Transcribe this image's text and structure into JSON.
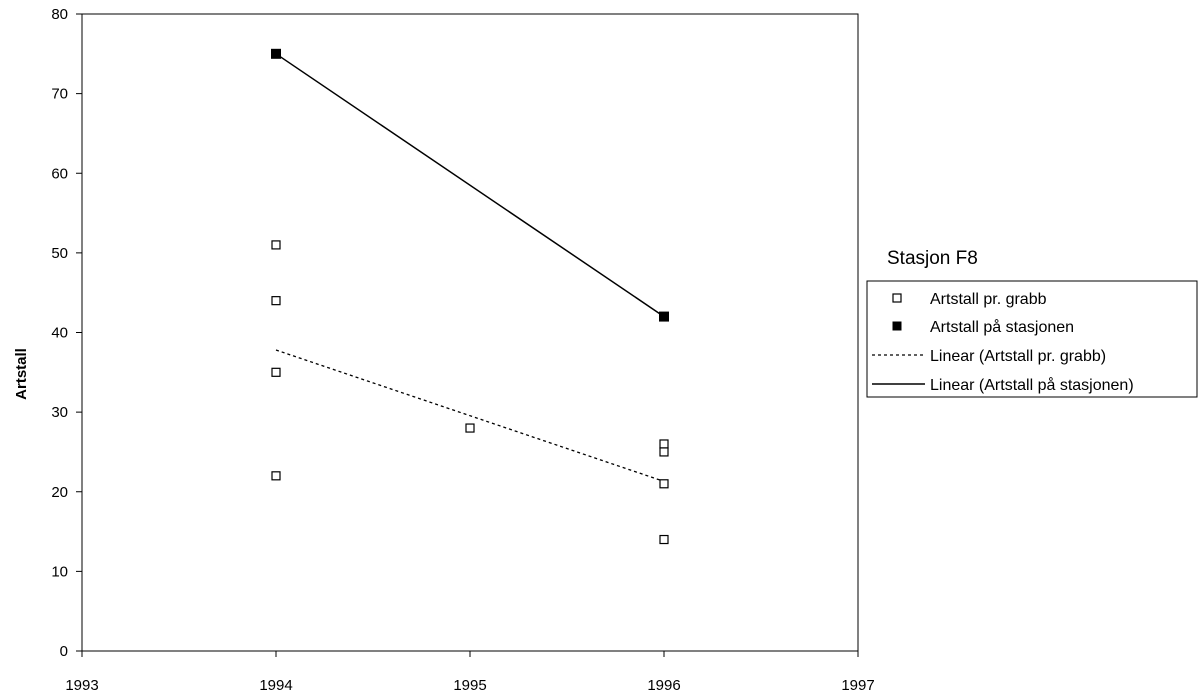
{
  "chart_data": {
    "type": "scatter",
    "title": "",
    "xlabel": "",
    "ylabel": "Artstall",
    "xlim": [
      1993,
      1997
    ],
    "ylim": [
      0,
      80
    ],
    "x_ticks": [
      1993,
      1994,
      1995,
      1996,
      1997
    ],
    "y_ticks": [
      0,
      10,
      20,
      30,
      40,
      50,
      60,
      70,
      80
    ],
    "grid": false,
    "legend": {
      "title": "Stasjon F8",
      "placement": "right",
      "entries": [
        {
          "label": "Artstall pr. grabb",
          "symbol": "open-square"
        },
        {
          "label": "Artstall på stasjonen",
          "symbol": "filled-square"
        },
        {
          "label": "Linear (Artstall pr. grabb)",
          "symbol": "dashed-line"
        },
        {
          "label": "Linear (Artstall på stasjonen)",
          "symbol": "solid-line"
        }
      ]
    },
    "series": [
      {
        "name": "Artstall pr. grabb",
        "marker": "open-square",
        "color": "#000000",
        "points": [
          [
            1994,
            51
          ],
          [
            1994,
            44
          ],
          [
            1994,
            35
          ],
          [
            1994,
            22
          ],
          [
            1995,
            28
          ],
          [
            1996,
            26
          ],
          [
            1996,
            25
          ],
          [
            1996,
            21
          ],
          [
            1996,
            14
          ]
        ]
      },
      {
        "name": "Artstall på stasjonen",
        "marker": "filled-square",
        "color": "#000000",
        "points": [
          [
            1994,
            75
          ],
          [
            1996,
            42
          ]
        ]
      },
      {
        "name": "Linear (Artstall pr. grabb)",
        "line_style": "dashed",
        "color": "#000000",
        "points": [
          [
            1994,
            37.8
          ],
          [
            1996,
            21.3
          ]
        ]
      },
      {
        "name": "Linear (Artstall på stasjonen)",
        "line_style": "solid",
        "color": "#000000",
        "points": [
          [
            1994,
            75
          ],
          [
            1996,
            42
          ]
        ]
      }
    ]
  }
}
